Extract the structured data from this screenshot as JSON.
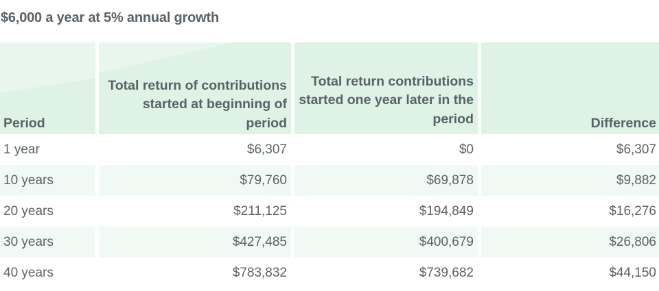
{
  "title": "$6,000 a year at 5% annual growth",
  "headers": [
    "Period",
    "Total return of contributions started at beginning of period",
    "Total return contributions started one year later in the period",
    "Difference"
  ],
  "rows": [
    {
      "period": "1 year",
      "begin": "$6,307",
      "later": "$0",
      "difference": "$6,307"
    },
    {
      "period": "10 years",
      "begin": "$79,760",
      "later": "$69,878",
      "difference": "$9,882"
    },
    {
      "period": "20 years",
      "begin": "$211,125",
      "later": "$194,849",
      "difference": "$16,276"
    },
    {
      "period": "30 years",
      "begin": "$427,485",
      "later": "$400,679",
      "difference": "$26,806"
    },
    {
      "period": "40 years",
      "begin": "$783,832",
      "later": "$739,682",
      "difference": "$44,150"
    }
  ]
}
